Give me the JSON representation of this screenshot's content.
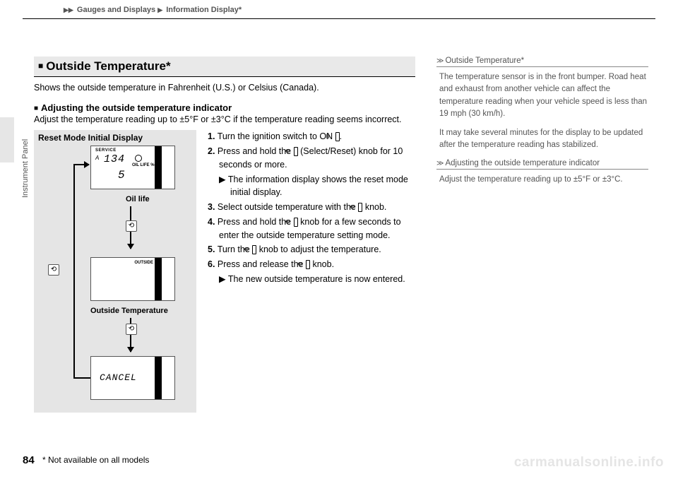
{
  "breadcrumb": {
    "arrow1": "▶▶",
    "part1": "Gauges and Displays",
    "arrow2": "▶",
    "part2": "Information Display",
    "star": "*"
  },
  "vlabel": "Instrument Panel",
  "section": {
    "marker": "■",
    "title": "Outside Temperature",
    "star": "*",
    "intro": "Shows the outside temperature in Fahrenheit (U.S.) or Celsius (Canada).",
    "sub_marker": "■",
    "sub_title": "Adjusting the outside temperature indicator",
    "sub_p": "Adjust the temperature reading up to ±5°F or ±3°C if the temperature reading seems incorrect."
  },
  "diagram": {
    "title": "Reset Mode Initial Display",
    "screen1": {
      "service": "SERVICE",
      "a": "A",
      "num": "134",
      "oil": "OIL LIFE %",
      "five": "5"
    },
    "oillife": "Oil life",
    "screen2": {
      "outside": "OUTSIDE"
    },
    "otemp": "Outside Temperature",
    "screen3": {
      "cancel": "CANCEL"
    },
    "knob": "⟲"
  },
  "steps": {
    "s1a": "1.",
    "s1b": "Turn the ignition switch to ON ",
    "s1ico": "II",
    "s1c": ".",
    "s2a": "2.",
    "s2b": "Press and hold the ",
    "s2ico": "⟲",
    "s2c": " (Select/Reset) knob for 10 seconds or more.",
    "s2sub_arrow": "▶",
    "s2sub": "The information display shows the reset mode initial display.",
    "s3a": "3.",
    "s3b": "Select outside temperature with the ",
    "s3ico": "⟲",
    "s3c": " knob.",
    "s4a": "4.",
    "s4b": "Press and hold the ",
    "s4ico": "⟲",
    "s4c": " knob for a few seconds to enter the outside temperature setting mode.",
    "s5a": "5.",
    "s5b": "Turn the ",
    "s5ico": "⟲",
    "s5c": " knob to adjust the temperature.",
    "s6a": "6.",
    "s6b": "Press and release the ",
    "s6ico": "⟲",
    "s6c": " knob.",
    "s6sub_arrow": "▶",
    "s6sub": "The new outside temperature is now entered."
  },
  "sidebar": {
    "h1_mark": "≫",
    "h1": "Outside Temperature",
    "h1_star": "*",
    "p1": "The temperature sensor is in the front bumper. Road heat and exhaust from another vehicle can affect the temperature reading when your vehicle speed is less than 19 mph (30 km/h).",
    "p2": "It may take several minutes for the display to be updated after the temperature reading has stabilized.",
    "h2_mark": "≫",
    "h2": "Adjusting the outside temperature indicator",
    "p3": "Adjust the temperature reading up to ±5°F or ±3°C."
  },
  "page": "84",
  "footnote": "* Not available on all models",
  "watermark": "carmanualsonline.info"
}
